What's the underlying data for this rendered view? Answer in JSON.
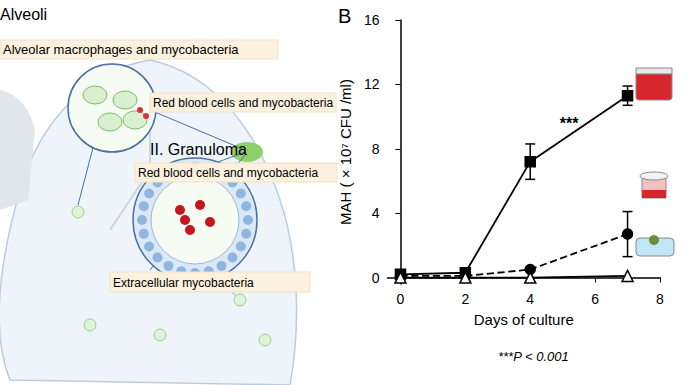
{
  "diagram": {
    "section_1": "Alveoli",
    "label_1": "Alveolar macrophages and mycobacteria",
    "label_2": "Red blood cells and mycobacteria",
    "section_2": "II. Granuloma",
    "label_3": "Red blood cells and mycobacteria",
    "label_4": "Extracellular mycobacteria"
  },
  "chart_data": {
    "type": "line",
    "panel": "B",
    "x_label": "Days of culture",
    "y_label": "MAH ( × 10⁷ CFU /ml)",
    "x": [
      0,
      2,
      4,
      7
    ],
    "series": [
      {
        "color": "#000000",
        "marker": "square",
        "line_style": "solid",
        "values": [
          0.2,
          0.3,
          7.2,
          11.3
        ],
        "errors": [
          0,
          0,
          1.1,
          0.6
        ]
      },
      {
        "color": "#000000",
        "marker": "circle",
        "line_style": "dashed",
        "values": [
          0.1,
          0.1,
          0.5,
          2.7
        ],
        "errors": [
          0,
          0,
          0,
          1.4
        ]
      },
      {
        "color": "#000000",
        "marker": "triangle-open",
        "line_style": "solid",
        "values": [
          0,
          0,
          0,
          0.1
        ],
        "errors": [
          0,
          0,
          0,
          0
        ]
      }
    ],
    "xlim": [
      -0.4,
      8
    ],
    "xticks": [
      0,
      2,
      4,
      6,
      8
    ],
    "ylim": [
      -0.4,
      16
    ],
    "yticks": [
      0,
      4,
      8,
      12,
      16
    ],
    "grid": false,
    "annotations": [
      {
        "text": "***",
        "x": 5.2,
        "y": 9.6
      }
    ],
    "footnote": "***P < 0.001"
  }
}
